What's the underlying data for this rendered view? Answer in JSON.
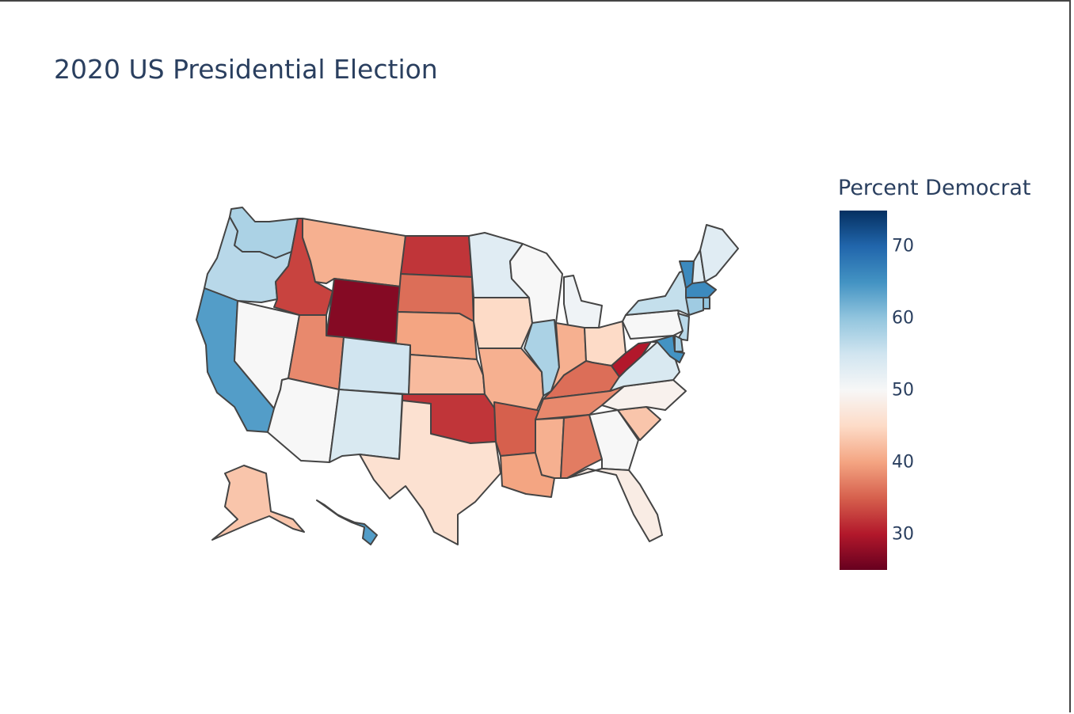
{
  "figure": {
    "title": "2020 US Presidential Election",
    "colorbar": {
      "title": "Percent Democrat",
      "colorscale": "RdBu",
      "range": [
        25,
        75
      ],
      "ticks": [
        70,
        60,
        50,
        40,
        30
      ],
      "colors": [
        "#67001f",
        "#b2182b",
        "#d6604d",
        "#f4a582",
        "#fddbc7",
        "#f7f7f7",
        "#d1e5f0",
        "#92c5de",
        "#4393c3",
        "#2166ac",
        "#053061"
      ]
    }
  },
  "map_data": {
    "type": "choropleth",
    "scope": "usa",
    "locationmode": "USA-states",
    "value_label": "Percent Democrat",
    "states": [
      {
        "state": "WA",
        "value": 58
      },
      {
        "state": "OR",
        "value": 57
      },
      {
        "state": "CA",
        "value": 64
      },
      {
        "state": "NV",
        "value": 50
      },
      {
        "state": "ID",
        "value": 33
      },
      {
        "state": "MT",
        "value": 41
      },
      {
        "state": "WY",
        "value": 27
      },
      {
        "state": "UT",
        "value": 38
      },
      {
        "state": "AZ",
        "value": 50
      },
      {
        "state": "CO",
        "value": 55
      },
      {
        "state": "NM",
        "value": 54
      },
      {
        "state": "ND",
        "value": 32
      },
      {
        "state": "SD",
        "value": 36
      },
      {
        "state": "NE",
        "value": 40
      },
      {
        "state": "KS",
        "value": 42
      },
      {
        "state": "OK",
        "value": 32
      },
      {
        "state": "TX",
        "value": 46
      },
      {
        "state": "MN",
        "value": 53
      },
      {
        "state": "IA",
        "value": 45
      },
      {
        "state": "MO",
        "value": 41
      },
      {
        "state": "AR",
        "value": 35
      },
      {
        "state": "LA",
        "value": 40
      },
      {
        "state": "WI",
        "value": 50
      },
      {
        "state": "IL",
        "value": 58
      },
      {
        "state": "MI",
        "value": 51
      },
      {
        "state": "IN",
        "value": 41
      },
      {
        "state": "OH",
        "value": 45
      },
      {
        "state": "KY",
        "value": 36
      },
      {
        "state": "TN",
        "value": 38
      },
      {
        "state": "MS",
        "value": 41
      },
      {
        "state": "AL",
        "value": 37
      },
      {
        "state": "GA",
        "value": 50
      },
      {
        "state": "FL",
        "value": 48
      },
      {
        "state": "SC",
        "value": 43
      },
      {
        "state": "NC",
        "value": 49
      },
      {
        "state": "VA",
        "value": 54
      },
      {
        "state": "WV",
        "value": 30
      },
      {
        "state": "PA",
        "value": 50
      },
      {
        "state": "NY",
        "value": 56
      },
      {
        "state": "VT",
        "value": 66
      },
      {
        "state": "NH",
        "value": 53
      },
      {
        "state": "ME",
        "value": 53
      },
      {
        "state": "MA",
        "value": 66
      },
      {
        "state": "RI",
        "value": 60
      },
      {
        "state": "CT",
        "value": 59
      },
      {
        "state": "NJ",
        "value": 57
      },
      {
        "state": "DE",
        "value": 59
      },
      {
        "state": "MD",
        "value": 65
      },
      {
        "state": "AK",
        "value": 43
      },
      {
        "state": "HI",
        "value": 64
      }
    ]
  }
}
